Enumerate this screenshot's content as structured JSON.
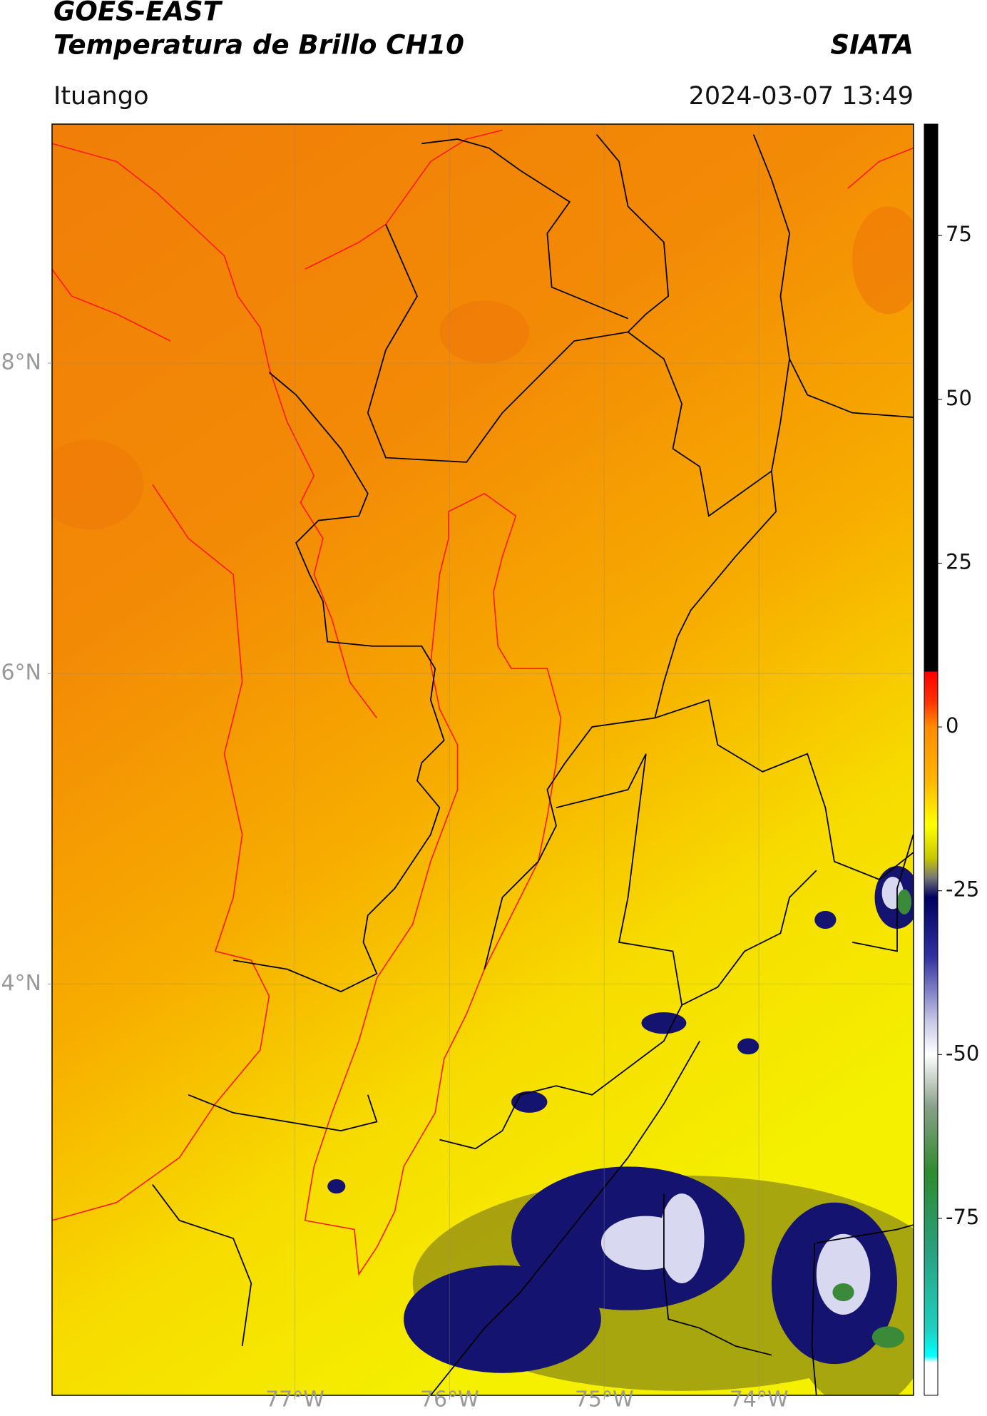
{
  "header": {
    "title": "GOES-EAST",
    "subtitle": "Temperatura de Brillo CH10",
    "source": "SIATA",
    "location": "Ituango",
    "datetime": "2024-03-07 13:49"
  },
  "map": {
    "xlim": [
      -78.57,
      -73.0
    ],
    "ylim": [
      1.35,
      9.54
    ],
    "xticks": [
      {
        "value": -77,
        "label": "77°W"
      },
      {
        "value": -76,
        "label": "76°W"
      },
      {
        "value": -75,
        "label": "75°W"
      },
      {
        "value": -74,
        "label": "74°W"
      }
    ],
    "yticks": [
      {
        "value": 8,
        "label": "8°N"
      },
      {
        "value": 6,
        "label": "6°N"
      },
      {
        "value": 4,
        "label": "4°N"
      }
    ],
    "grid": true
  },
  "colorbar": {
    "lim": [
      -102,
      92
    ],
    "ticks": [
      75,
      50,
      25,
      0,
      -25,
      -50,
      -75
    ],
    "colormap": [
      {
        "value": 92,
        "color": "#000000"
      },
      {
        "value": 8.5,
        "color": "#000000"
      },
      {
        "value": 8.4,
        "color": "#ff0000"
      },
      {
        "value": 4,
        "color": "#ff3000"
      },
      {
        "value": 0,
        "color": "#ff8c00"
      },
      {
        "value": -8,
        "color": "#ffb400"
      },
      {
        "value": -15,
        "color": "#ffff00"
      },
      {
        "value": -20,
        "color": "#c8c800"
      },
      {
        "value": -23,
        "color": "#777777"
      },
      {
        "value": -26,
        "color": "#000060"
      },
      {
        "value": -35,
        "color": "#3030a0"
      },
      {
        "value": -45,
        "color": "#c8c8e8"
      },
      {
        "value": -50,
        "color": "#ffffff"
      },
      {
        "value": -58,
        "color": "#88a088"
      },
      {
        "value": -68,
        "color": "#2e8b2e"
      },
      {
        "value": -80,
        "color": "#2aa080"
      },
      {
        "value": -92,
        "color": "#20d0c0"
      },
      {
        "value": -96,
        "color": "#00ffff"
      },
      {
        "value": -97,
        "color": "#ffffff"
      },
      {
        "value": -102,
        "color": "#ffffff"
      }
    ]
  }
}
